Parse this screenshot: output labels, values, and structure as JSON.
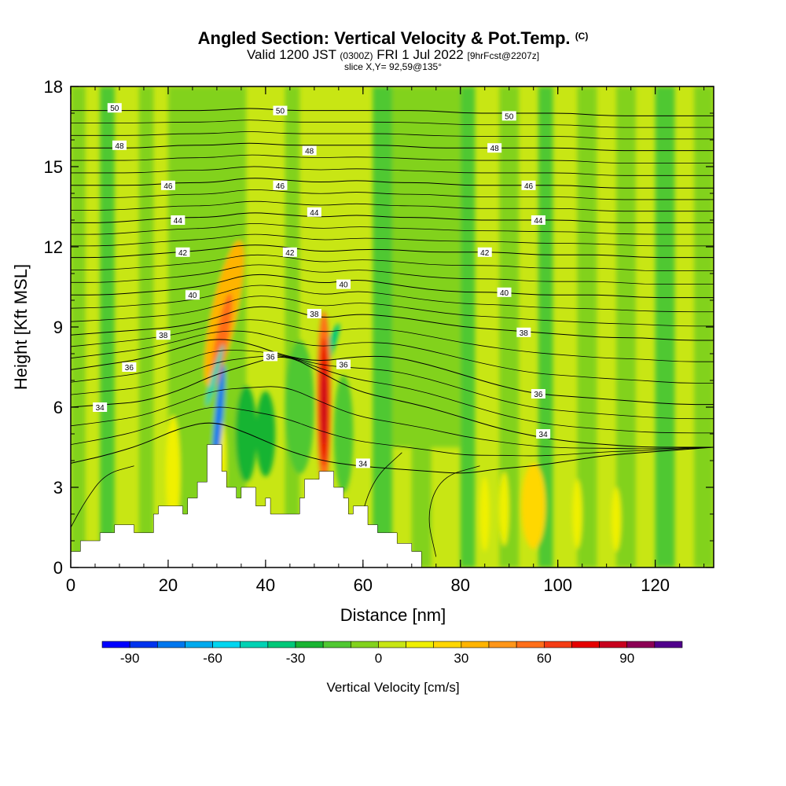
{
  "header": {
    "title": "Angled Section: Vertical Velocity & Pot.Temp.",
    "copyright_mark": "(C)",
    "valid_prefix": "Valid 1200 JST",
    "valid_utc": "(0300Z)",
    "valid_date": "FRI 1 Jul 2022",
    "forecast_info": "[9hrFcst@2207z]",
    "slice_info": "slice X,Y= 92,59@135°"
  },
  "chart_data": {
    "type": "heatmap",
    "title": "Angled Section: Vertical Velocity & Pot.Temp.",
    "xlabel": "Distance [nm]",
    "ylabel": "Height [Kft MSL]",
    "xlim": [
      0,
      132
    ],
    "ylim": [
      0,
      18
    ],
    "x_ticks": [
      0,
      20,
      40,
      60,
      80,
      100,
      120
    ],
    "y_ticks": [
      0,
      3,
      6,
      9,
      12,
      15,
      18
    ],
    "colorbar": {
      "label": "Vertical Velocity [cm/s]",
      "tick_values": [
        -90,
        -60,
        -30,
        0,
        30,
        60,
        90
      ],
      "range": [
        -100,
        110
      ],
      "colors": [
        "#0000ff",
        "#0033ee",
        "#0077ee",
        "#00aaee",
        "#00d6f0",
        "#00d2b4",
        "#00c878",
        "#19b432",
        "#50c832",
        "#82d21e",
        "#c8e614",
        "#f0f000",
        "#ffd700",
        "#ffb400",
        "#ff9619",
        "#ff6e19",
        "#f53c14",
        "#e60000",
        "#c8001e",
        "#8c0055",
        "#50008c"
      ]
    },
    "terrain": [
      [
        0,
        0.6
      ],
      [
        2,
        1
      ],
      [
        6,
        1.3
      ],
      [
        9,
        1.6
      ],
      [
        13,
        1.3
      ],
      [
        17,
        2
      ],
      [
        18,
        2.3
      ],
      [
        22,
        2.3
      ],
      [
        23,
        2
      ],
      [
        24,
        2.6
      ],
      [
        26,
        3.2
      ],
      [
        28,
        4.6
      ],
      [
        30,
        4.6
      ],
      [
        31,
        3.6
      ],
      [
        32,
        3
      ],
      [
        34,
        2.6
      ],
      [
        35,
        3
      ],
      [
        38,
        2.3
      ],
      [
        40,
        2.6
      ],
      [
        41,
        2
      ],
      [
        45,
        2
      ],
      [
        47,
        2.6
      ],
      [
        48,
        3.3
      ],
      [
        50,
        3.3
      ],
      [
        51,
        3.6
      ],
      [
        53,
        3.6
      ],
      [
        54,
        3
      ],
      [
        56,
        2.6
      ],
      [
        57,
        2
      ],
      [
        58,
        2.3
      ],
      [
        60,
        2.3
      ],
      [
        61,
        1.6
      ],
      [
        63,
        1.3
      ],
      [
        65,
        1.3
      ],
      [
        67,
        0.9
      ],
      [
        70,
        0.6
      ],
      [
        72,
        0
      ]
    ],
    "series": [
      {
        "name": "34",
        "label_at": [
          [
            6,
            6.0
          ],
          [
            60,
            3.9
          ],
          [
            97,
            5.0
          ]
        ]
      },
      {
        "name": "36",
        "label_at": [
          [
            12,
            7.5
          ],
          [
            41,
            7.9
          ],
          [
            56,
            7.6
          ],
          [
            96,
            6.5
          ]
        ]
      },
      {
        "name": "38",
        "label_at": [
          [
            19,
            8.7
          ],
          [
            50,
            9.5
          ],
          [
            93,
            8.8
          ]
        ]
      },
      {
        "name": "40",
        "label_at": [
          [
            25,
            10.2
          ],
          [
            56,
            10.6
          ],
          [
            89,
            10.3
          ]
        ]
      },
      {
        "name": "42",
        "label_at": [
          [
            23,
            11.8
          ],
          [
            45,
            11.8
          ],
          [
            85,
            11.8
          ]
        ]
      },
      {
        "name": "44",
        "label_at": [
          [
            22,
            13.0
          ],
          [
            50,
            13.3
          ],
          [
            96,
            13.0
          ]
        ]
      },
      {
        "name": "46",
        "label_at": [
          [
            20,
            14.3
          ],
          [
            43,
            14.3
          ],
          [
            94,
            14.3
          ]
        ]
      },
      {
        "name": "48",
        "label_at": [
          [
            10,
            15.8
          ],
          [
            49,
            15.6
          ],
          [
            87,
            15.7
          ]
        ]
      },
      {
        "name": "50",
        "label_at": [
          [
            9,
            17.2
          ],
          [
            43,
            17.1
          ],
          [
            90,
            16.9
          ]
        ]
      }
    ]
  }
}
